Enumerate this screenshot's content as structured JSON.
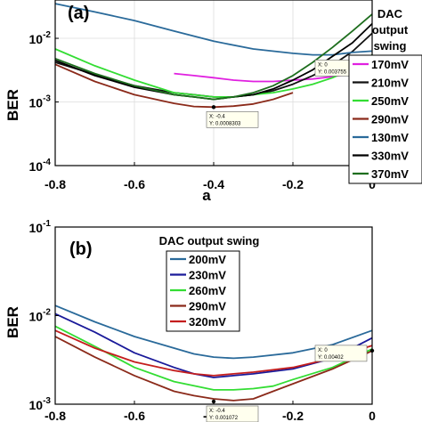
{
  "chart_data": [
    {
      "type": "line",
      "panel_label": "(a)",
      "xlabel": "a",
      "ylabel": "BER",
      "xlim": [
        -0.8,
        0
      ],
      "ylim": [
        0.0001,
        0.04
      ],
      "yscale": "log",
      "x_ticks": [
        "-0.8",
        "-0.6",
        "-0.4",
        "-0.2",
        "0"
      ],
      "y_ticks": [
        {
          "value": 0.01,
          "base": "10",
          "exp": "-2"
        },
        {
          "value": 0.001,
          "base": "10",
          "exp": "-3"
        },
        {
          "value": 0.0001,
          "base": "10",
          "exp": "-4"
        }
      ],
      "grid": true,
      "legend_title": "DAC output swing",
      "legend_placement": "right",
      "series": [
        {
          "name": "170mV",
          "color": "#e020e0",
          "x": [
            -0.5,
            -0.45,
            -0.4,
            -0.35,
            -0.3,
            -0.25,
            -0.2,
            -0.15,
            -0.1,
            -0.05,
            0
          ],
          "y": [
            0.0028,
            0.0026,
            0.0024,
            0.0022,
            0.0021,
            0.0021,
            0.0022,
            0.0023,
            0.0025,
            0.0028,
            0.0032
          ]
        },
        {
          "name": "210mV",
          "color": "#111111",
          "x": [
            -0.8,
            -0.7,
            -0.6,
            -0.5,
            -0.45,
            -0.4,
            -0.35,
            -0.3,
            -0.25,
            -0.2,
            -0.15,
            -0.1,
            -0.05,
            0
          ],
          "y": [
            0.0042,
            0.0027,
            0.0018,
            0.0014,
            0.0013,
            0.0012,
            0.0012,
            0.0013,
            0.0015,
            0.0019,
            0.0026,
            0.0038,
            0.0062,
            0.012
          ]
        },
        {
          "name": "250mV",
          "color": "#33dd33",
          "x": [
            -0.8,
            -0.7,
            -0.6,
            -0.5,
            -0.4,
            -0.35,
            -0.3,
            -0.25,
            -0.2,
            -0.15,
            -0.1,
            -0.05,
            0
          ],
          "y": [
            0.0068,
            0.0037,
            0.0022,
            0.0014,
            0.0012,
            0.0012,
            0.0013,
            0.0014,
            0.0016,
            0.0019,
            0.0024,
            0.0033,
            0.0055
          ]
        },
        {
          "name": "290mV",
          "color": "#8b2a1a",
          "x": [
            -0.8,
            -0.7,
            -0.6,
            -0.5,
            -0.45,
            -0.4,
            -0.35,
            -0.3,
            -0.25,
            -0.2
          ],
          "y": [
            0.0039,
            0.0021,
            0.0013,
            0.00095,
            0.00085,
            0.00083,
            0.00086,
            0.00093,
            0.0011,
            0.0014
          ]
        },
        {
          "name": "130mV",
          "color": "#2a6a9a",
          "x": [
            -0.8,
            -0.7,
            -0.6,
            -0.5,
            -0.4,
            -0.3,
            -0.2,
            -0.15,
            -0.1,
            -0.05,
            0
          ],
          "y": [
            0.035,
            0.026,
            0.019,
            0.013,
            0.009,
            0.0068,
            0.0058,
            0.0055,
            0.0055,
            0.006,
            0.0063
          ]
        },
        {
          "name": "330mV",
          "color": "#000000",
          "x": [
            -0.8,
            -0.7,
            -0.6,
            -0.5,
            -0.45,
            -0.4,
            -0.35,
            -0.3,
            -0.25,
            -0.2,
            -0.15,
            -0.1,
            -0.05,
            0
          ],
          "y": [
            0.0045,
            0.0026,
            0.0017,
            0.0013,
            0.0012,
            0.0011,
            0.0012,
            0.0013,
            0.0016,
            0.0022,
            0.0032,
            0.0052,
            0.0085,
            0.017
          ]
        },
        {
          "name": "370mV",
          "color": "#1e6e1e",
          "x": [
            -0.8,
            -0.7,
            -0.6,
            -0.5,
            -0.45,
            -0.4,
            -0.35,
            -0.3,
            -0.25,
            -0.2,
            -0.15,
            -0.1,
            -0.05,
            0
          ],
          "y": [
            0.0048,
            0.0028,
            0.0018,
            0.0013,
            0.0012,
            0.0011,
            0.0012,
            0.0014,
            0.0018,
            0.0026,
            0.0042,
            0.0072,
            0.013,
            0.024
          ]
        }
      ],
      "annotations": [
        {
          "lines": [
            "X: -0.4",
            "Y: 0.0008303"
          ],
          "x": -0.4,
          "y": 0.0008303
        },
        {
          "lines": [
            "X: 0",
            "Y: 0.003755"
          ],
          "x": 0,
          "y": 0.003755
        }
      ]
    },
    {
      "type": "line",
      "panel_label": "(b)",
      "xlabel": "",
      "ylabel": "BER",
      "xlim": [
        -0.8,
        0
      ],
      "ylim": [
        0.001,
        0.1
      ],
      "yscale": "log",
      "x_ticks": [
        "-0.8",
        "-0.6",
        "-0.4",
        "-0.2",
        "0"
      ],
      "y_ticks": [
        {
          "value": 0.1,
          "base": "10",
          "exp": "-1"
        },
        {
          "value": 0.01,
          "base": "10",
          "exp": "-2"
        },
        {
          "value": 0.001,
          "base": "10",
          "exp": "-3"
        }
      ],
      "grid": false,
      "legend_title": "DAC output swing",
      "legend_placement": "top-center",
      "series": [
        {
          "name": "200mV",
          "color": "#2a6a9a",
          "x": [
            -0.8,
            -0.7,
            -0.6,
            -0.5,
            -0.45,
            -0.4,
            -0.35,
            -0.3,
            -0.2,
            -0.1,
            0
          ],
          "y": [
            0.013,
            0.0085,
            0.0058,
            0.0043,
            0.0037,
            0.0034,
            0.0033,
            0.0034,
            0.0038,
            0.0047,
            0.0068
          ]
        },
        {
          "name": "230mV",
          "color": "#1a1a9a",
          "x": [
            -0.8,
            -0.7,
            -0.6,
            -0.5,
            -0.45,
            -0.4,
            -0.35,
            -0.3,
            -0.2,
            -0.1,
            0
          ],
          "y": [
            0.0105,
            0.0065,
            0.0038,
            0.0026,
            0.0022,
            0.002,
            0.0021,
            0.0022,
            0.0025,
            0.0033,
            0.0056
          ]
        },
        {
          "name": "260mV",
          "color": "#33dd33",
          "x": [
            -0.8,
            -0.7,
            -0.6,
            -0.5,
            -0.4,
            -0.35,
            -0.3,
            -0.25,
            -0.2,
            -0.1,
            0
          ],
          "y": [
            0.0076,
            0.0045,
            0.0026,
            0.0018,
            0.00145,
            0.00145,
            0.0015,
            0.0016,
            0.0019,
            0.0026,
            0.0042
          ]
        },
        {
          "name": "290mV",
          "color": "#8b2a1a",
          "x": [
            -0.8,
            -0.7,
            -0.6,
            -0.5,
            -0.45,
            -0.4,
            -0.35,
            -0.3,
            -0.25,
            -0.2,
            -0.1,
            0
          ],
          "y": [
            0.0058,
            0.0034,
            0.0021,
            0.0014,
            0.00125,
            0.00115,
            0.0011,
            0.00115,
            0.0014,
            0.0017,
            0.0025,
            0.004
          ]
        },
        {
          "name": "320mV",
          "color": "#c41e1e",
          "x": [
            -0.8,
            -0.7,
            -0.6,
            -0.5,
            -0.45,
            -0.4,
            -0.35,
            -0.3,
            -0.2,
            -0.1,
            0
          ],
          "y": [
            0.0068,
            0.0043,
            0.003,
            0.0024,
            0.0022,
            0.0021,
            0.0022,
            0.0023,
            0.0026,
            0.0033,
            0.0046
          ]
        }
      ],
      "annotations": [
        {
          "lines": [
            "X: -0.4",
            "Y: 0.001072"
          ],
          "x": -0.4,
          "y": 0.001072
        },
        {
          "lines": [
            "X: 0",
            "Y: 0.00402"
          ],
          "x": 0,
          "y": 0.00402
        }
      ]
    }
  ]
}
